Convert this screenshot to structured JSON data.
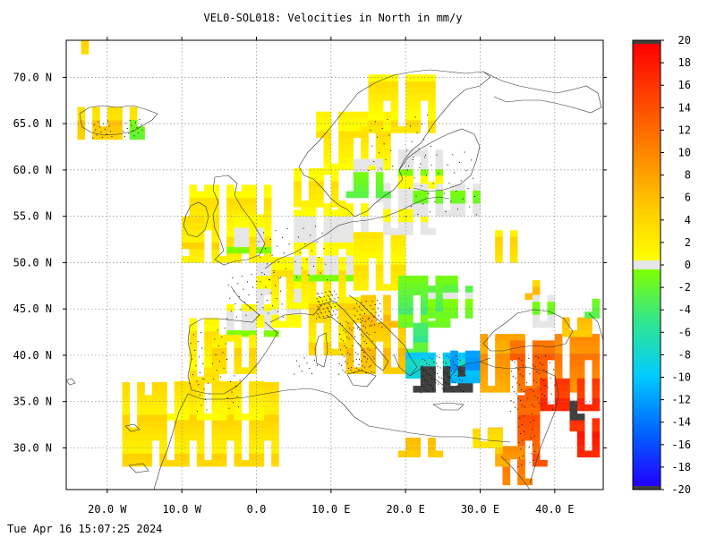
{
  "title": "VEL0-SOL018: Velocities in North in mm/y",
  "timestamp": "Tue Apr 16 15:07:25 2024",
  "map": {
    "lon_range": [
      -25.5,
      46.5
    ],
    "lat_range": [
      25.5,
      74.0
    ],
    "lat_ticks": [
      {
        "value": 70,
        "label": "70.0 N"
      },
      {
        "value": 65,
        "label": "65.0 N"
      },
      {
        "value": 60,
        "label": "60.0 N"
      },
      {
        "value": 55,
        "label": "55.0 N"
      },
      {
        "value": 50,
        "label": "50.0 N"
      },
      {
        "value": 45,
        "label": "45.0 N"
      },
      {
        "value": 40,
        "label": "40.0 N"
      },
      {
        "value": 35,
        "label": "35.0 N"
      },
      {
        "value": 30,
        "label": "30.0 N"
      }
    ],
    "lon_ticks": [
      {
        "value": -20,
        "label": "20.0 W"
      },
      {
        "value": -10,
        "label": "10.0 W"
      },
      {
        "value": 0,
        "label": "0.0"
      },
      {
        "value": 10,
        "label": "10.0 E"
      },
      {
        "value": 20,
        "label": "20.0 E"
      },
      {
        "value": 30,
        "label": "30.0 E"
      },
      {
        "value": 40,
        "label": "40.0 E"
      }
    ],
    "grid": true
  },
  "colorbar": {
    "ticks": [
      {
        "value": 20,
        "label": "20"
      },
      {
        "value": 18,
        "label": "18"
      },
      {
        "value": 16,
        "label": "16"
      },
      {
        "value": 14,
        "label": "14"
      },
      {
        "value": 12,
        "label": "12"
      },
      {
        "value": 10,
        "label": "10"
      },
      {
        "value": 8,
        "label": "8"
      },
      {
        "value": 6,
        "label": "6"
      },
      {
        "value": 4,
        "label": "4"
      },
      {
        "value": 2,
        "label": "2"
      },
      {
        "value": 0,
        "label": "0"
      },
      {
        "value": -2,
        "label": "-2"
      },
      {
        "value": -4,
        "label": "-4"
      },
      {
        "value": -6,
        "label": "-6"
      },
      {
        "value": -8,
        "label": "-8"
      },
      {
        "value": -10,
        "label": "-10"
      },
      {
        "value": -12,
        "label": "-12"
      },
      {
        "value": -14,
        "label": "-14"
      },
      {
        "value": -16,
        "label": "-16"
      },
      {
        "value": -18,
        "label": "-18"
      },
      {
        "value": -20,
        "label": "-20"
      }
    ],
    "range": [
      -20,
      20
    ]
  },
  "colors": {
    "over_max": "#404040",
    "under_min": "#404040",
    "near_zero": "#e6e6e6",
    "stops": [
      "#2200ff",
      "#0066ff",
      "#00ccff",
      "#33e68c",
      "#80ff00",
      "#ffff00",
      "#ffb000",
      "#ff6000",
      "#ff0000"
    ]
  }
}
